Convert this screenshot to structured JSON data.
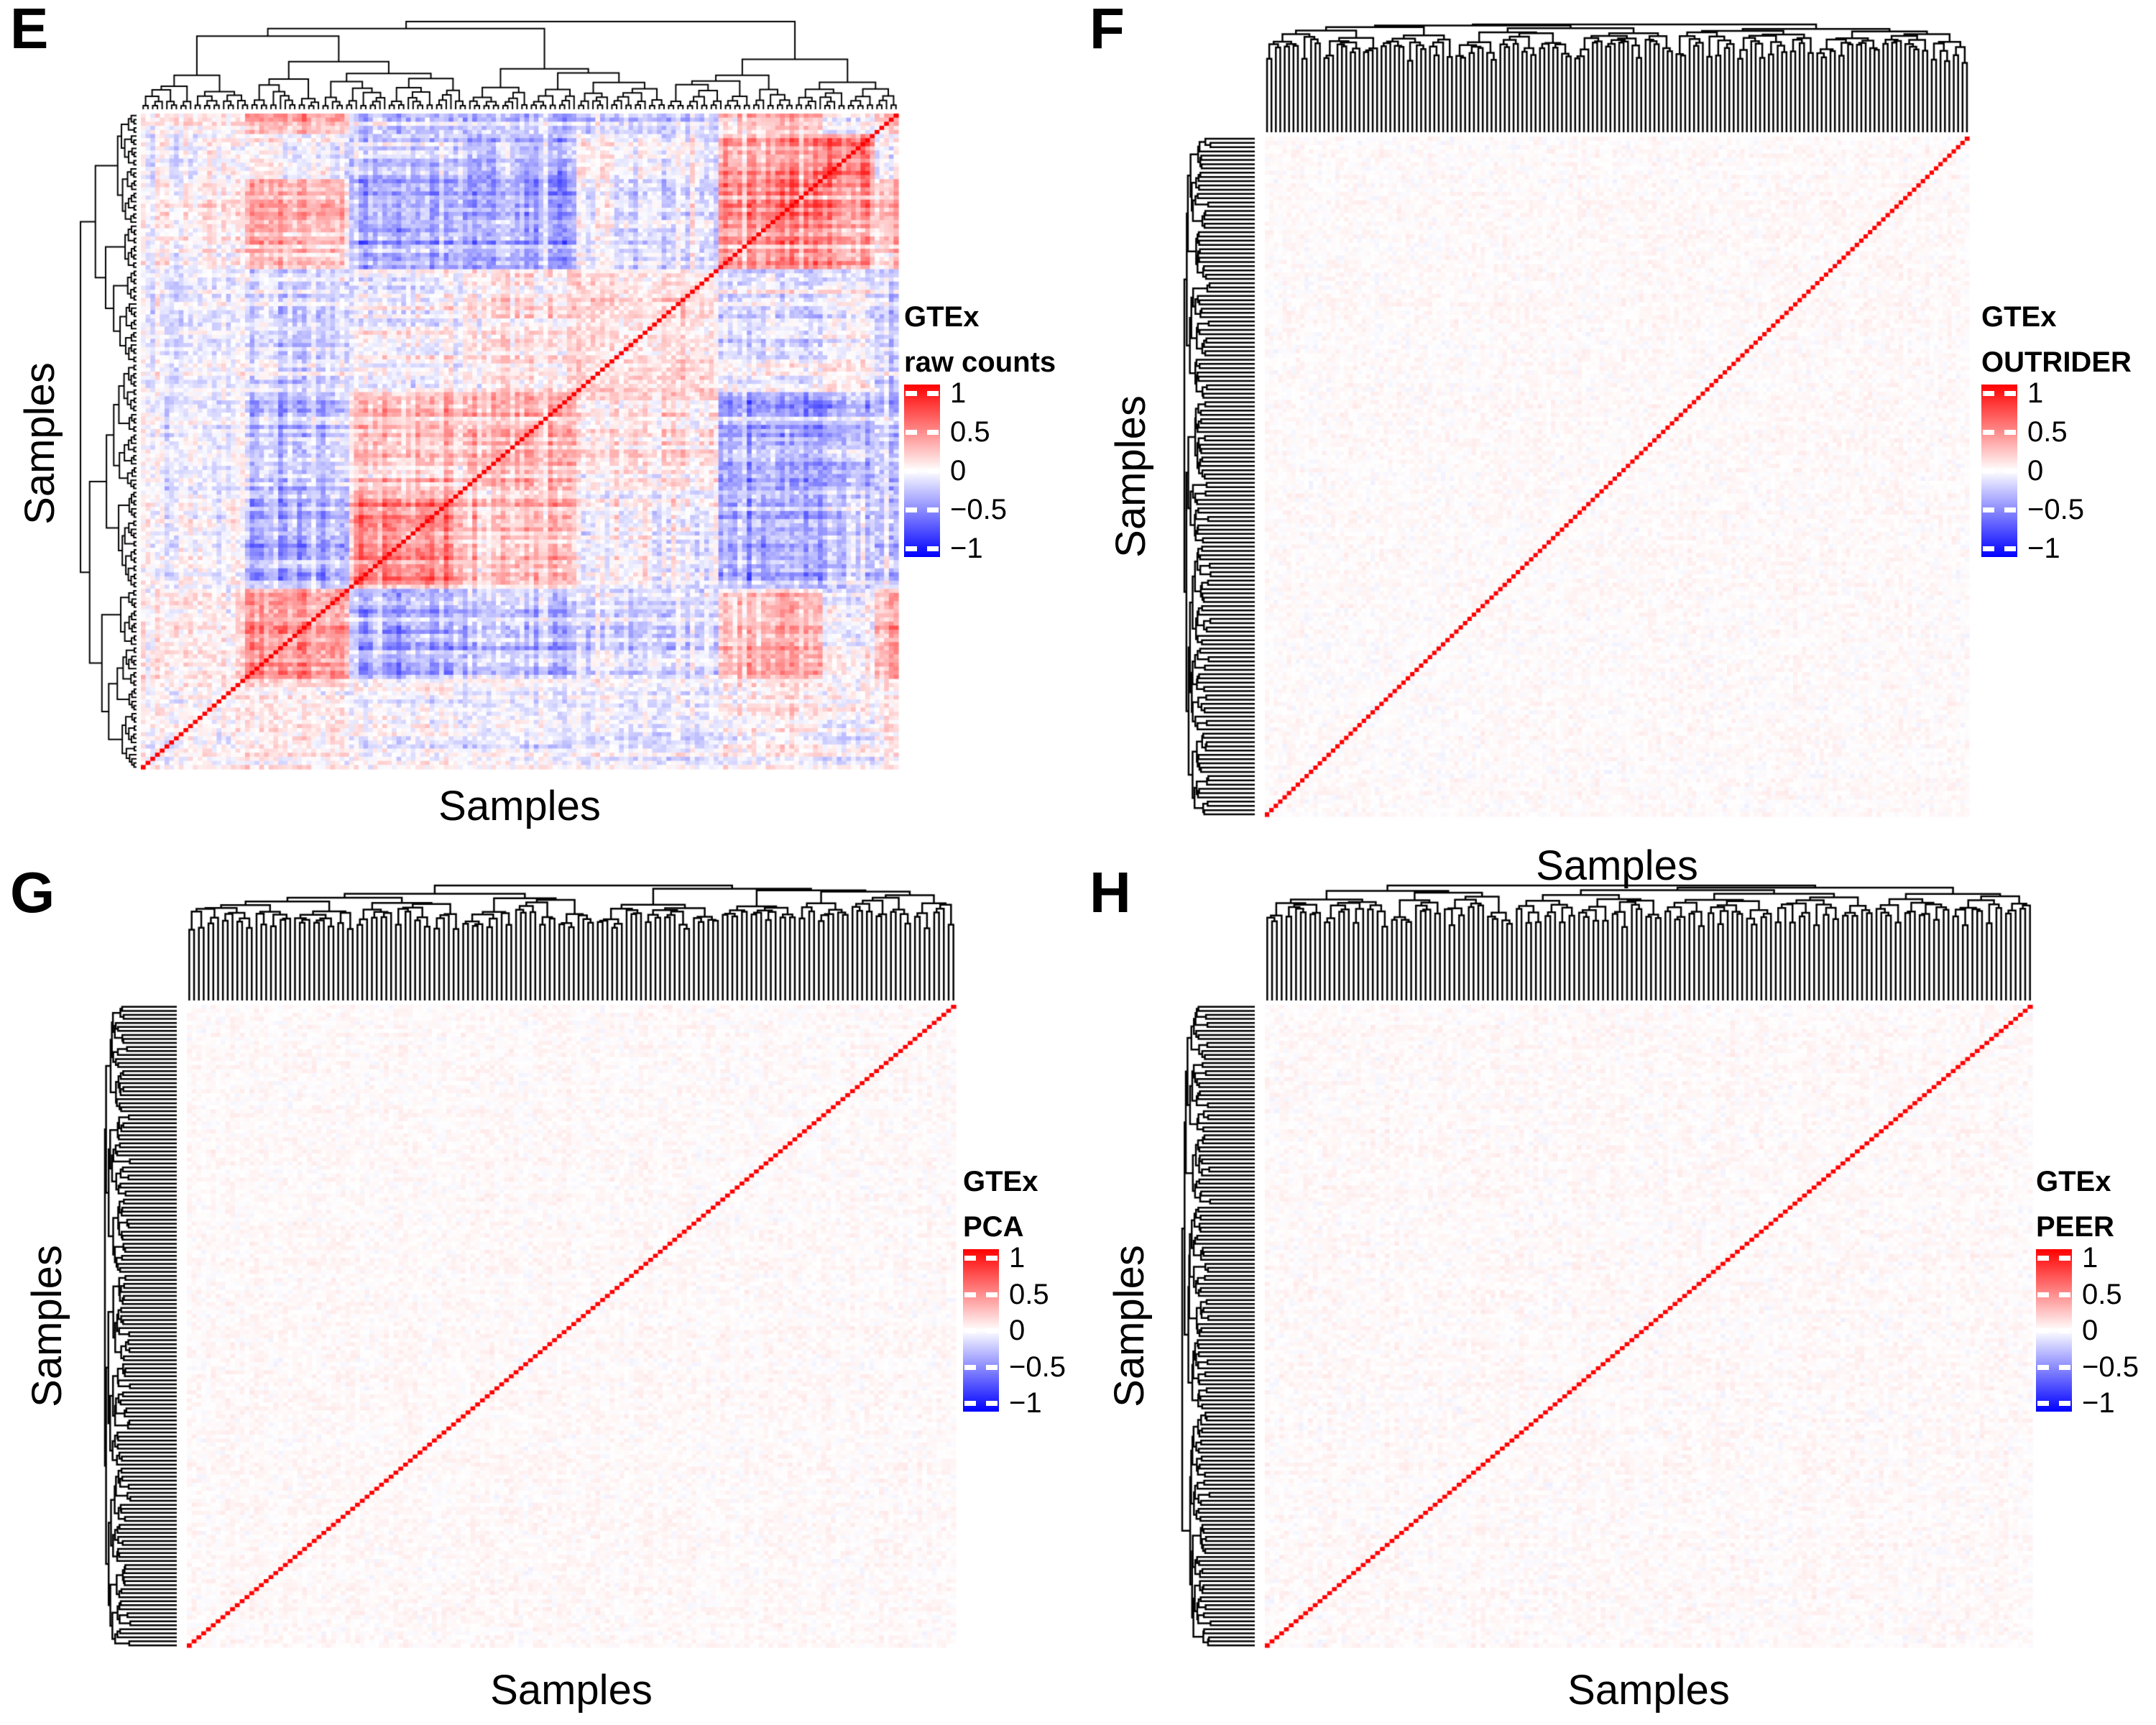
{
  "figure": {
    "panels": [
      {
        "id": "E",
        "letter": "E",
        "x_axis_label": "Samples",
        "y_axis_label": "Samples",
        "legend": {
          "line1": "GTEx",
          "line2": "raw counts",
          "tick_labels": [
            "1",
            "0.5",
            "0",
            "−0.5",
            "−1"
          ]
        }
      },
      {
        "id": "F",
        "letter": "F",
        "x_axis_label": "Samples",
        "y_axis_label": "Samples",
        "legend": {
          "line1": "GTEx",
          "line2": "OUTRIDER",
          "tick_labels": [
            "1",
            "0.5",
            "0",
            "−0.5",
            "−1"
          ]
        }
      },
      {
        "id": "G",
        "letter": "G",
        "x_axis_label": "Samples",
        "y_axis_label": "Samples",
        "legend": {
          "line1": "GTEx",
          "line2": "PCA",
          "tick_labels": [
            "1",
            "0.5",
            "0",
            "−0.5",
            "−1"
          ]
        }
      },
      {
        "id": "H",
        "letter": "H",
        "x_axis_label": "Samples",
        "y_axis_label": "Samples",
        "legend": {
          "line1": "GTEx",
          "line2": "PEER",
          "tick_labels": [
            "1",
            "0.5",
            "0",
            "−0.5",
            "−1"
          ]
        }
      }
    ],
    "colors": {
      "positive_max": "#FF0000",
      "zero": "#FFFFFF",
      "negative_max": "#0000FF",
      "diagonal": "#FF0000",
      "dendrogram": "#000000",
      "background": "#FFFFFF",
      "text": "#000000"
    }
  },
  "chart_data": [
    {
      "type": "heatmap",
      "panel": "E",
      "legend_title": [
        "GTEx",
        "raw counts"
      ],
      "xlabel": "Samples",
      "ylabel": "Samples",
      "content": "sample-by-sample correlation matrix of GTEx raw counts with row and column hierarchical-clustering dendrograms",
      "n_samples_estimate": 160,
      "diagonal_value": 1,
      "off_diagonal_range": [
        -0.7,
        0.8
      ],
      "pattern": "strong clustered blocks of positive (red) and negative (blue/purple) correlation; red identity diagonal runs bottom-left to top-right",
      "colorbar_ticks": [
        1,
        0.5,
        0,
        -0.5,
        -1
      ],
      "colorbar_range": [
        -1,
        1
      ],
      "colormap": [
        "#0000FF",
        "#FFFFFF",
        "#FF0000"
      ],
      "row_dendrogram": true,
      "col_dendrogram": true,
      "legend_position": "right"
    },
    {
      "type": "heatmap",
      "panel": "F",
      "legend_title": [
        "GTEx",
        "OUTRIDER"
      ],
      "xlabel": "Samples",
      "ylabel": "Samples",
      "content": "sample-by-sample correlation matrix after OUTRIDER correction",
      "n_samples_estimate": 160,
      "diagonal_value": 1,
      "off_diagonal_range": [
        -0.15,
        0.15
      ],
      "pattern": "near-zero correlations (almost white with faint speckle); red identity diagonal; dendrogram merges concentrated near the root (long leaf stems)",
      "colorbar_ticks": [
        1,
        0.5,
        0,
        -0.5,
        -1
      ],
      "colorbar_range": [
        -1,
        1
      ],
      "colormap": [
        "#0000FF",
        "#FFFFFF",
        "#FF0000"
      ],
      "row_dendrogram": true,
      "col_dendrogram": true,
      "legend_position": "right"
    },
    {
      "type": "heatmap",
      "panel": "G",
      "legend_title": [
        "GTEx",
        "PCA"
      ],
      "xlabel": "Samples",
      "ylabel": "Samples",
      "content": "sample-by-sample correlation matrix after PCA correction",
      "n_samples_estimate": 160,
      "diagonal_value": 1,
      "off_diagonal_range": [
        -0.15,
        0.15
      ],
      "pattern": "near-zero correlations (almost white with faint speckle); red identity diagonal; dendrogram merges concentrated near the root (long leaf stems)",
      "colorbar_ticks": [
        1,
        0.5,
        0,
        -0.5,
        -1
      ],
      "colorbar_range": [
        -1,
        1
      ],
      "colormap": [
        "#0000FF",
        "#FFFFFF",
        "#FF0000"
      ],
      "row_dendrogram": true,
      "col_dendrogram": true,
      "legend_position": "right"
    },
    {
      "type": "heatmap",
      "panel": "H",
      "legend_title": [
        "GTEx",
        "PEER"
      ],
      "xlabel": "Samples",
      "ylabel": "Samples",
      "content": "sample-by-sample correlation matrix after PEER correction",
      "n_samples_estimate": 160,
      "diagonal_value": 1,
      "off_diagonal_range": [
        -0.15,
        0.15
      ],
      "pattern": "near-zero correlations (almost white with faint speckle); red identity diagonal; dendrogram merges concentrated near the root (long leaf stems)",
      "colorbar_ticks": [
        1,
        0.5,
        0,
        -0.5,
        -1
      ],
      "colorbar_range": [
        -1,
        1
      ],
      "colormap": [
        "#0000FF",
        "#FFFFFF",
        "#FF0000"
      ],
      "row_dendrogram": true,
      "col_dendrogram": true,
      "legend_position": "right"
    }
  ]
}
